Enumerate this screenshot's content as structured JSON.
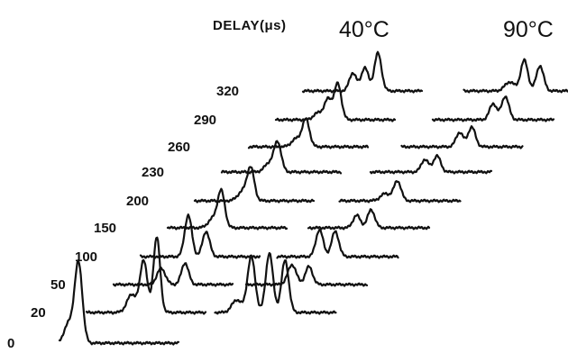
{
  "chart_data": {
    "type": "line",
    "title": "",
    "delay_axis_label": "DELAY(μs)",
    "delay_tick_labels": [
      "0",
      "20",
      "50",
      "100",
      "150",
      "200",
      "230",
      "260",
      "290",
      "320"
    ],
    "delays_us": [
      0,
      20,
      50,
      100,
      150,
      200,
      230,
      260,
      290,
      320
    ],
    "panels": [
      {
        "label": "40°C",
        "traces": [
          {
            "delay": 0,
            "peaks": [
              {
                "pos": 0.16,
                "height": 88,
                "width": 0.032
              },
              {
                "pos": 0.08,
                "height": 22,
                "width": 0.04
              }
            ]
          },
          {
            "delay": 20,
            "peaks": [
              {
                "pos": 0.48,
                "height": 58,
                "width": 0.03
              },
              {
                "pos": 0.59,
                "height": 84,
                "width": 0.028
              },
              {
                "pos": 0.38,
                "height": 20,
                "width": 0.04
              }
            ]
          },
          {
            "delay": 50,
            "peaks": [
              {
                "pos": 0.4,
                "height": 18,
                "width": 0.035
              },
              {
                "pos": 0.6,
                "height": 24,
                "width": 0.03
              }
            ]
          },
          {
            "delay": 100,
            "peaks": [
              {
                "pos": 0.4,
                "height": 46,
                "width": 0.03
              },
              {
                "pos": 0.55,
                "height": 28,
                "width": 0.03
              }
            ]
          },
          {
            "delay": 150,
            "peaks": [
              {
                "pos": 0.45,
                "height": 40,
                "width": 0.03
              },
              {
                "pos": 0.38,
                "height": 10,
                "width": 0.04
              }
            ]
          },
          {
            "delay": 200,
            "peaks": [
              {
                "pos": 0.47,
                "height": 36,
                "width": 0.03
              },
              {
                "pos": 0.4,
                "height": 10,
                "width": 0.04
              }
            ]
          },
          {
            "delay": 230,
            "peaks": [
              {
                "pos": 0.47,
                "height": 32,
                "width": 0.03
              },
              {
                "pos": 0.4,
                "height": 10,
                "width": 0.04
              }
            ]
          },
          {
            "delay": 260,
            "peaks": [
              {
                "pos": 0.48,
                "height": 30,
                "width": 0.03
              },
              {
                "pos": 0.4,
                "height": 9,
                "width": 0.04
              }
            ]
          },
          {
            "delay": 290,
            "peaks": [
              {
                "pos": 0.44,
                "height": 22,
                "width": 0.03
              },
              {
                "pos": 0.52,
                "height": 40,
                "width": 0.03
              },
              {
                "pos": 0.36,
                "height": 8,
                "width": 0.04
              }
            ]
          },
          {
            "delay": 320,
            "peaks": [
              {
                "pos": 0.42,
                "height": 20,
                "width": 0.03
              },
              {
                "pos": 0.52,
                "height": 26,
                "width": 0.03
              },
              {
                "pos": 0.63,
                "height": 42,
                "width": 0.03
              }
            ]
          }
        ]
      },
      {
        "label": "90°C",
        "traces": [
          {
            "delay": 20,
            "peaks": [
              {
                "pos": 0.3,
                "height": 62,
                "width": 0.032
              },
              {
                "pos": 0.45,
                "height": 66,
                "width": 0.03
              },
              {
                "pos": 0.58,
                "height": 58,
                "width": 0.03
              },
              {
                "pos": 0.18,
                "height": 14,
                "width": 0.04
              }
            ]
          },
          {
            "delay": 50,
            "peaks": [
              {
                "pos": 0.38,
                "height": 22,
                "width": 0.035
              },
              {
                "pos": 0.52,
                "height": 20,
                "width": 0.03
              }
            ]
          },
          {
            "delay": 100,
            "peaks": [
              {
                "pos": 0.35,
                "height": 30,
                "width": 0.03
              },
              {
                "pos": 0.48,
                "height": 28,
                "width": 0.03
              }
            ]
          },
          {
            "delay": 150,
            "peaks": [
              {
                "pos": 0.4,
                "height": 14,
                "width": 0.03
              },
              {
                "pos": 0.52,
                "height": 20,
                "width": 0.03
              }
            ]
          },
          {
            "delay": 200,
            "peaks": [
              {
                "pos": 0.48,
                "height": 22,
                "width": 0.03
              },
              {
                "pos": 0.38,
                "height": 8,
                "width": 0.04
              }
            ]
          },
          {
            "delay": 230,
            "peaks": [
              {
                "pos": 0.45,
                "height": 14,
                "width": 0.03
              },
              {
                "pos": 0.55,
                "height": 18,
                "width": 0.03
              }
            ]
          },
          {
            "delay": 260,
            "peaks": [
              {
                "pos": 0.48,
                "height": 16,
                "width": 0.03
              },
              {
                "pos": 0.58,
                "height": 22,
                "width": 0.03
              }
            ]
          },
          {
            "delay": 290,
            "peaks": [
              {
                "pos": 0.5,
                "height": 18,
                "width": 0.03
              },
              {
                "pos": 0.6,
                "height": 26,
                "width": 0.03
              }
            ]
          },
          {
            "delay": 320,
            "peaks": [
              {
                "pos": 0.5,
                "height": 34,
                "width": 0.03
              },
              {
                "pos": 0.63,
                "height": 28,
                "width": 0.03
              },
              {
                "pos": 0.38,
                "height": 10,
                "width": 0.04
              }
            ]
          }
        ]
      }
    ]
  }
}
